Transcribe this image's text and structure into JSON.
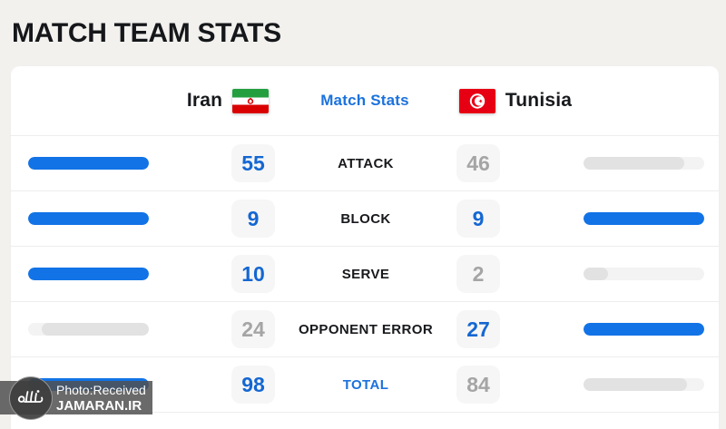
{
  "page": {
    "title": "MATCH TEAM STATS"
  },
  "header": {
    "home_team": "Iran",
    "away_team": "Tunisia",
    "center_label": "Match Stats",
    "home_flag_icon": "iran-flag-icon",
    "away_flag_icon": "tunisia-flag-icon"
  },
  "chart_data": {
    "type": "bar",
    "title": "Match Stats",
    "categories": [
      "ATTACK",
      "BLOCK",
      "SERVE",
      "OPPONENT ERROR",
      "TOTAL"
    ],
    "series": [
      {
        "name": "Iran",
        "values": [
          55,
          9,
          10,
          24,
          98
        ]
      },
      {
        "name": "Tunisia",
        "values": [
          46,
          9,
          2,
          27,
          84
        ]
      }
    ],
    "layout": "paired horizontal bars, each pair scaled to the row maximum; winning value shown blue, losing value gray"
  },
  "stats": [
    {
      "label": "ATTACK",
      "home": 55,
      "away": 46,
      "accent": false
    },
    {
      "label": "BLOCK",
      "home": 9,
      "away": 9,
      "accent": false
    },
    {
      "label": "SERVE",
      "home": 10,
      "away": 2,
      "accent": false
    },
    {
      "label": "OPPONENT ERROR",
      "home": 24,
      "away": 27,
      "accent": false
    },
    {
      "label": "TOTAL",
      "home": 98,
      "away": 84,
      "accent": true
    }
  ],
  "watermark": {
    "line1": "Photo:Received",
    "line2": "JAMARAN.IR"
  },
  "colors": {
    "bar_win": "#1273e6",
    "bar_lose": "#e2e2e2",
    "bar_track": "#f3f3f3",
    "value_win": "#1467d2",
    "value_lose": "#a5a5a5",
    "accent_text": "#1b72dd",
    "iran_green": "#239f40",
    "iran_red": "#da0000",
    "tunisia_red": "#e70013"
  }
}
